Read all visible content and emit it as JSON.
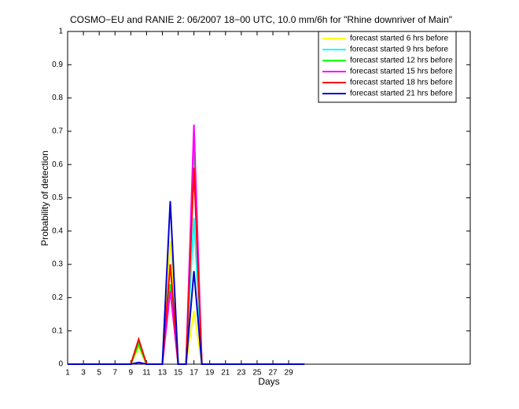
{
  "chart_data": {
    "type": "line",
    "title": "COSMO−EU and RANIE 2: 06/2007 18−00 UTC, 10.0 mm/6h for \"Rhine downriver of Main\"",
    "x_label": "Days",
    "y_label": "Probability of detection",
    "x": [
      1,
      2,
      3,
      4,
      5,
      6,
      7,
      8,
      9,
      10,
      11,
      12,
      13,
      14,
      15,
      16,
      17,
      18,
      19,
      20,
      21,
      22,
      23,
      24,
      25,
      26,
      27,
      28,
      29,
      30,
      31
    ],
    "xlim": [
      1,
      52
    ],
    "xticks": [
      1,
      3,
      5,
      7,
      9,
      11,
      13,
      15,
      17,
      19,
      21,
      23,
      25,
      27,
      29
    ],
    "ylim": [
      0,
      1
    ],
    "yticks": [
      0,
      0.1,
      0.2,
      0.3,
      0.4,
      0.5,
      0.6,
      0.7,
      0.8,
      0.9,
      1
    ],
    "legend": "upper right",
    "series": [
      {
        "name": "forecast started 6 hrs before",
        "color": "#ffff00",
        "values": [
          0,
          0,
          0,
          0,
          0,
          0,
          0,
          0,
          0,
          0.05,
          0,
          0,
          0,
          0.37,
          0,
          0,
          0.16,
          0,
          0,
          0,
          0,
          0,
          0,
          0,
          0,
          0,
          0,
          0,
          0,
          0,
          0
        ]
      },
      {
        "name": "forecast started 9 hrs before",
        "color": "#00ffff",
        "values": [
          0,
          0,
          0,
          0,
          0,
          0,
          0,
          0,
          0,
          0.06,
          0,
          0,
          0,
          0.24,
          0,
          0,
          0.44,
          0,
          0,
          0,
          0,
          0,
          0,
          0,
          0,
          0,
          0,
          0,
          0,
          0,
          0
        ]
      },
      {
        "name": "forecast started 12 hrs before",
        "color": "#00ff00",
        "values": [
          0,
          0,
          0,
          0,
          0,
          0,
          0,
          0,
          0,
          0.06,
          0,
          0,
          0,
          0.24,
          0,
          0,
          0.67,
          0,
          0,
          0,
          0,
          0,
          0,
          0,
          0,
          0,
          0,
          0,
          0,
          0,
          0
        ]
      },
      {
        "name": "forecast started 15 hrs before",
        "color": "#ff00ff",
        "values": [
          0,
          0,
          0,
          0,
          0,
          0,
          0,
          0,
          0,
          0.005,
          0,
          0,
          0,
          0.22,
          0,
          0,
          0.72,
          0,
          0,
          0,
          0,
          0,
          0,
          0,
          0,
          0,
          0,
          0,
          0,
          0,
          0
        ]
      },
      {
        "name": "forecast started 18 hrs before",
        "color": "#ff0000",
        "values": [
          0,
          0,
          0,
          0,
          0,
          0,
          0,
          0,
          0,
          0.075,
          0,
          0,
          0,
          0.3,
          0,
          0,
          0.59,
          0,
          0,
          0,
          0,
          0,
          0,
          0,
          0,
          0,
          0,
          0,
          0,
          0,
          0
        ]
      },
      {
        "name": "forecast started 21 hrs before",
        "color": "#0000cc",
        "values": [
          0,
          0,
          0,
          0,
          0,
          0,
          0,
          0,
          0,
          0.005,
          0,
          0,
          0,
          0.49,
          0,
          0,
          0.28,
          0,
          0,
          0,
          0,
          0,
          0,
          0,
          0,
          0,
          0,
          0,
          0,
          0,
          0
        ]
      }
    ]
  }
}
